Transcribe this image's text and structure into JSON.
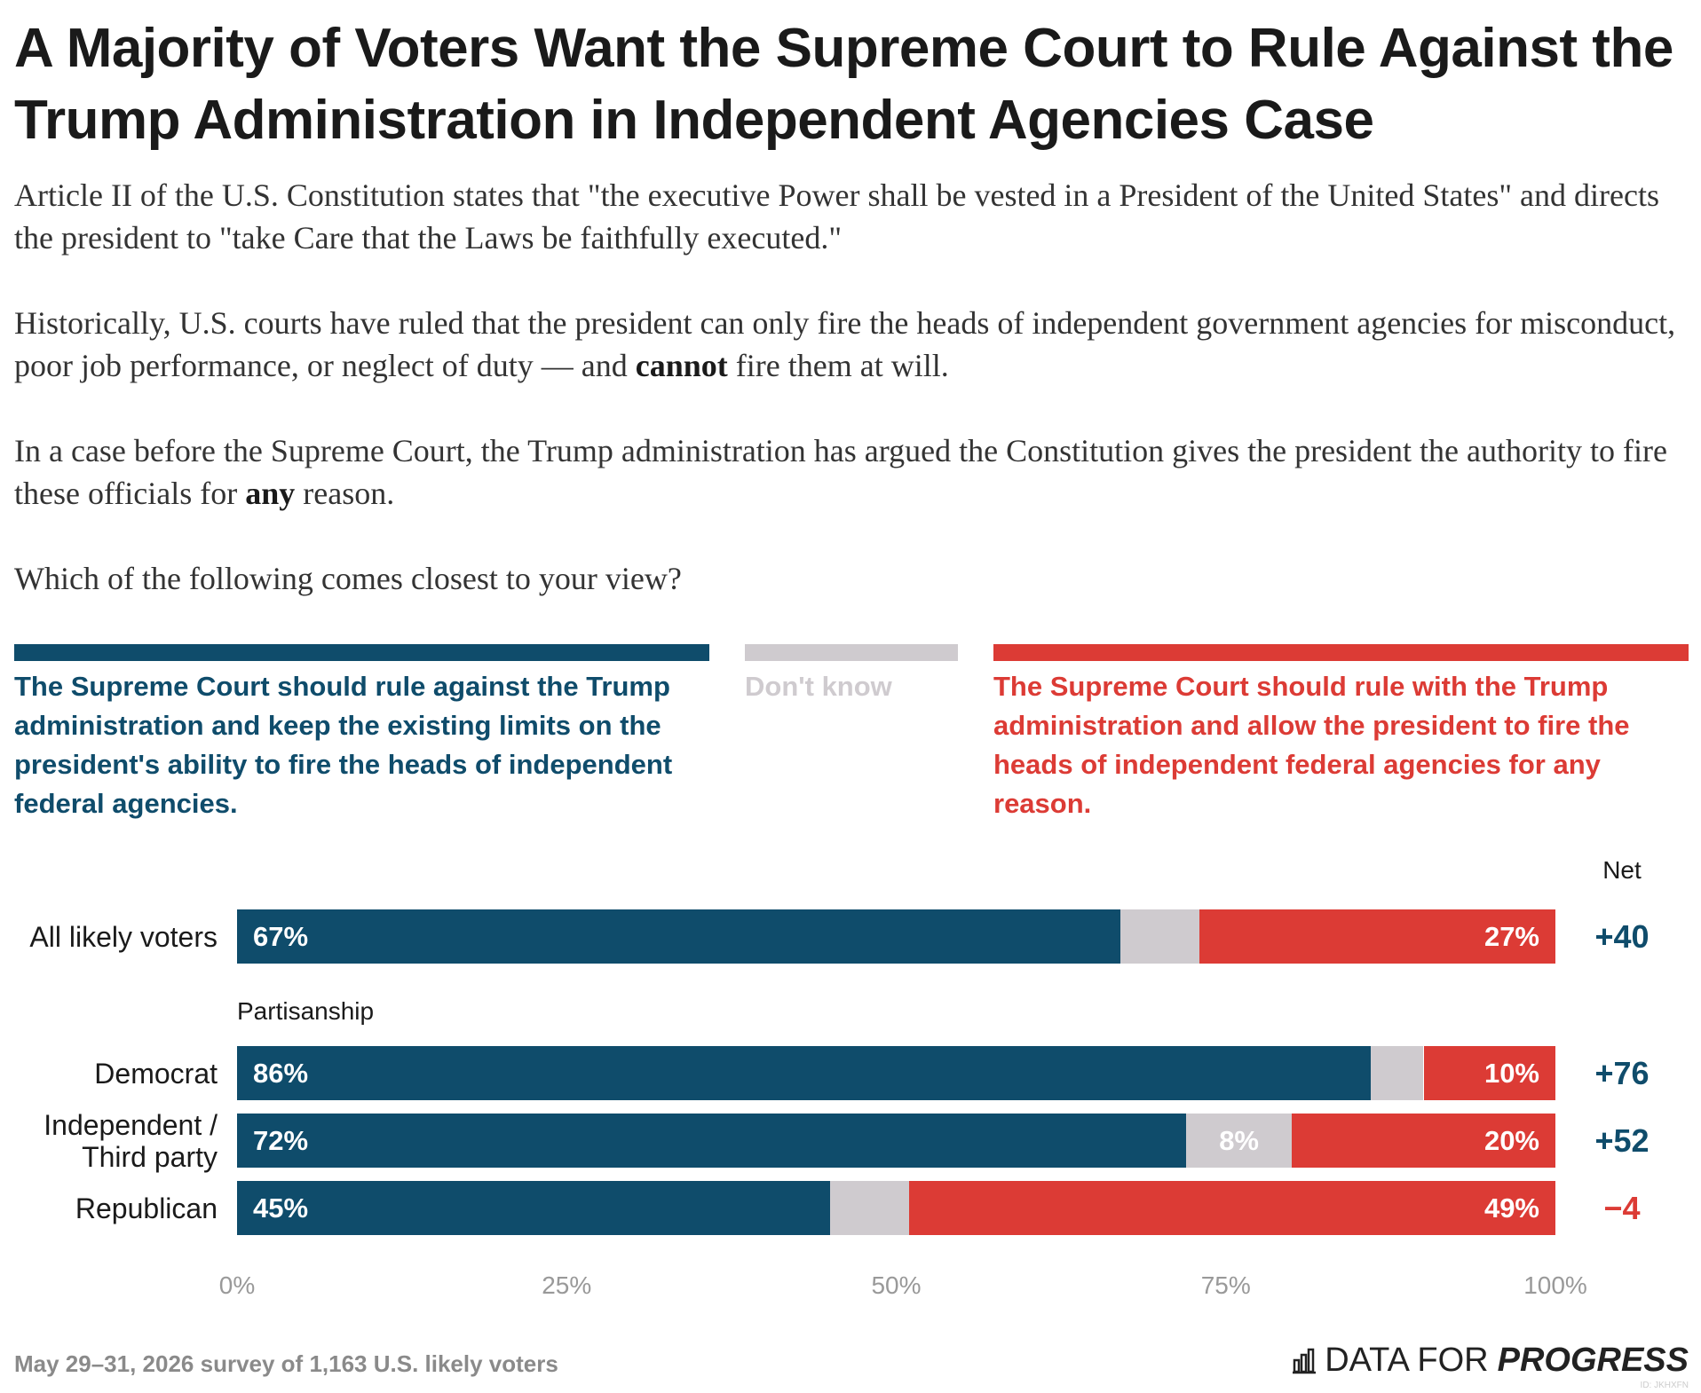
{
  "chart_data": {
    "type": "stacked-bar",
    "title": "A Majority of Voters Want the Supreme Court to Rule Against the Trump Administration in Independent Agencies Case",
    "intro": [
      [
        {
          "text": "Article II of the U.S. Constitution states that \"the executive Power shall be vested in a President of the United States\" and directs the president to \"take Care that the Laws be faithfully executed.\""
        }
      ],
      [
        {
          "text": "Historically, U.S. courts have ruled that the president can only fire the heads of independent government agencies for misconduct, poor job performance, or neglect of duty — and "
        },
        {
          "text": "cannot",
          "bold": true
        },
        {
          "text": " fire them at will."
        }
      ],
      [
        {
          "text": "In a case before the Supreme Court, the Trump administration has argued the Constitution gives the president the authority to fire these officials for "
        },
        {
          "text": "any",
          "bold": true
        },
        {
          "text": " reason."
        }
      ],
      [
        {
          "text": "Which of the following comes closest to your view?"
        }
      ]
    ],
    "categories": [
      "All likely voters",
      "Democrat",
      "Independent / Third party",
      "Republican"
    ],
    "group_label": "Partisanship",
    "series": [
      {
        "name": "The Supreme Court should rule against the Trump administration and keep the existing limits on the president's ability to fire the heads of independent federal agencies.",
        "color": "#0f4c6b",
        "values": [
          67,
          86,
          72,
          45
        ],
        "value_labels": [
          "67%",
          "86%",
          "72%",
          "45%"
        ]
      },
      {
        "name": "Don't know",
        "color": "#cfcbcf",
        "values": [
          6,
          4,
          8,
          6
        ],
        "value_labels": [
          null,
          null,
          "8%",
          null
        ]
      },
      {
        "name": "The Supreme Court should rule with the Trump administration and allow the president to fire the heads of independent federal agencies for any reason.",
        "color": "#dc3b35",
        "values": [
          27,
          10,
          20,
          49
        ],
        "value_labels": [
          "27%",
          "10%",
          "20%",
          "49%"
        ]
      }
    ],
    "net": {
      "title": "Net",
      "values": [
        40,
        76,
        52,
        -4
      ],
      "labels": [
        "+40",
        "+76",
        "+52",
        "−4"
      ]
    },
    "xlim": [
      0,
      100
    ],
    "xticks": [
      {
        "value": 0,
        "label": "0%"
      },
      {
        "value": 25,
        "label": "25%"
      },
      {
        "value": 50,
        "label": "50%"
      },
      {
        "value": 75,
        "label": "75%"
      },
      {
        "value": 100,
        "label": "100%"
      }
    ],
    "source": "May 29–31, 2026 survey of 1,163 U.S. likely voters",
    "logo": {
      "text": "DATA FOR",
      "emphasis": "PROGRESS"
    },
    "chart_id": "ID: JKHXFN"
  }
}
